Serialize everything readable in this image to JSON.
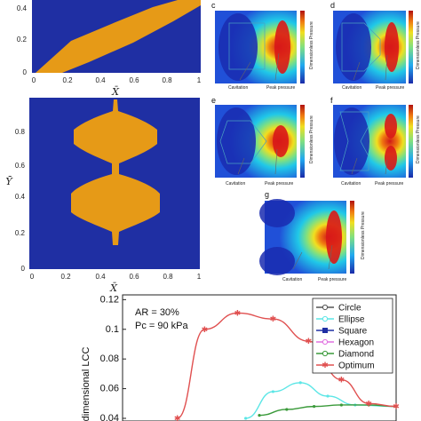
{
  "colors": {
    "blue": "#1f2fa3",
    "orange": "#e69a17",
    "curve_red": "#e05050",
    "curve_cyan": "#5ce6e6",
    "curve_green": "#3a9a3a"
  },
  "panel_a": {
    "xticks": [
      "0",
      "0.2",
      "0.4",
      "0.6",
      "0.8",
      "1"
    ],
    "yticks": [
      "0",
      "0.2",
      "0.4"
    ],
    "xlabel": "X̄"
  },
  "panel_b": {
    "xticks": [
      "0",
      "0.2",
      "0.4",
      "0.6",
      "0.8",
      "1"
    ],
    "yticks": [
      "0",
      "0.2",
      "0.4",
      "0.6",
      "0.8"
    ],
    "xlabel": "X̄",
    "ylabel": "Ȳ"
  },
  "contours": [
    {
      "letter": "c",
      "cav": "Cavitation",
      "peak": "Peak pressure",
      "cbar_label": "Dimensionless Pressure"
    },
    {
      "letter": "d",
      "cav": "Cavitation",
      "peak": "Peak pressure",
      "cbar_label": "Dimensionless Pressure"
    },
    {
      "letter": "e",
      "cav": "Cavitation",
      "peak": "Peak pressure",
      "cbar_label": "Dimensionless Pressure"
    },
    {
      "letter": "f",
      "cav": "Cavitation",
      "peak": "Peak pressure",
      "cbar_label": "Dimensionless Pressure"
    },
    {
      "letter": "g",
      "cav": "Cavitation",
      "peak": "Peak pressure",
      "cbar_label": "Dimensionless Pressure"
    }
  ],
  "chart_data": {
    "type": "line",
    "annotation_lines": [
      "AR = 30%",
      "Pc = 90 kPa"
    ],
    "ylabel": "-dimensional LCC",
    "yticks": [
      0.04,
      0.06,
      0.08,
      0.1,
      0.12
    ],
    "ylim": [
      0.04,
      0.125
    ],
    "xlim": [
      0,
      1
    ],
    "legend_position": "top-right",
    "series": [
      {
        "name": "Circle",
        "color": "#555555",
        "x": [],
        "y": []
      },
      {
        "name": "Ellipse",
        "color": "#5ce6e6",
        "x": [
          0.45,
          0.55,
          0.65,
          0.75,
          0.85,
          1.0
        ],
        "y": [
          0.04,
          0.058,
          0.064,
          0.055,
          0.049,
          0.048
        ]
      },
      {
        "name": "Square",
        "color": "#1f2fa3",
        "x": [],
        "y": []
      },
      {
        "name": "Hexagon",
        "color": "#e070e0",
        "x": [],
        "y": []
      },
      {
        "name": "Diamond",
        "color": "#3a9a3a",
        "x": [
          0.5,
          0.6,
          0.7,
          0.8,
          0.9,
          1.0
        ],
        "y": [
          0.042,
          0.046,
          0.048,
          0.049,
          0.049,
          0.048
        ]
      },
      {
        "name": "Optimum",
        "color": "#e05050",
        "x": [
          0.2,
          0.3,
          0.42,
          0.55,
          0.68,
          0.8,
          0.9,
          1.0
        ],
        "y": [
          0.04,
          0.1,
          0.111,
          0.107,
          0.092,
          0.066,
          0.05,
          0.048
        ]
      }
    ]
  }
}
